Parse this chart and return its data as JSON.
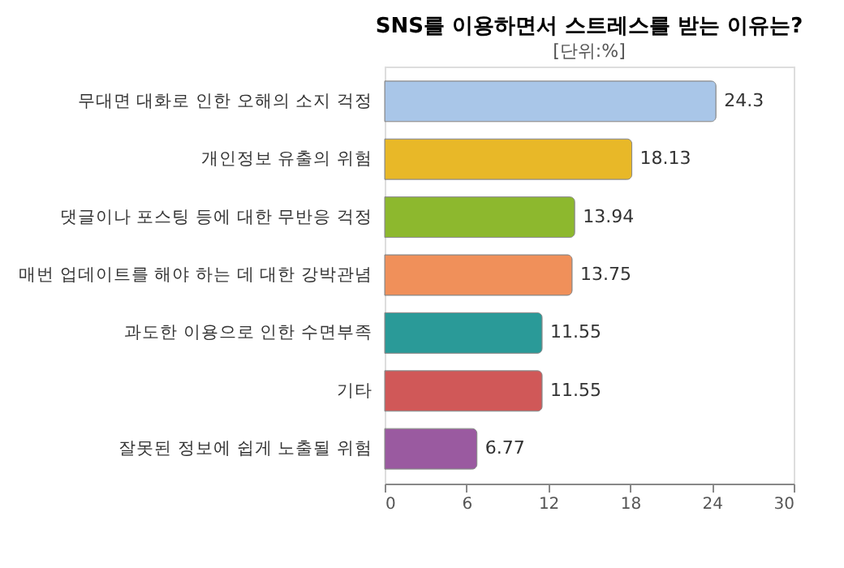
{
  "chart_data": {
    "type": "bar",
    "orientation": "horizontal",
    "title": "SNS를 이용하면서 스트레스를 받는 이유는?",
    "subtitle": "[단위:%]",
    "categories": [
      "무대면 대화로 인한 오해의 소지 걱정",
      "개인정보 유출의 위험",
      "댓글이나 포스팅 등에 대한 무반응 걱정",
      "매번 업데이트를 해야 하는 데 대한 강박관념",
      "과도한 이용으로 인한 수면부족",
      "기타",
      "잘못된 정보에 쉽게 노출될 위험"
    ],
    "values": [
      24.3,
      18.13,
      13.94,
      13.75,
      11.55,
      11.55,
      6.77
    ],
    "colors": [
      "#a9c6e8",
      "#e8b828",
      "#8db82e",
      "#f0905a",
      "#2a9a98",
      "#d05858",
      "#9a5aa0"
    ],
    "xlim": [
      0,
      30
    ],
    "xticks": [
      0,
      6,
      12,
      18,
      24,
      30
    ],
    "data_labels": true
  }
}
